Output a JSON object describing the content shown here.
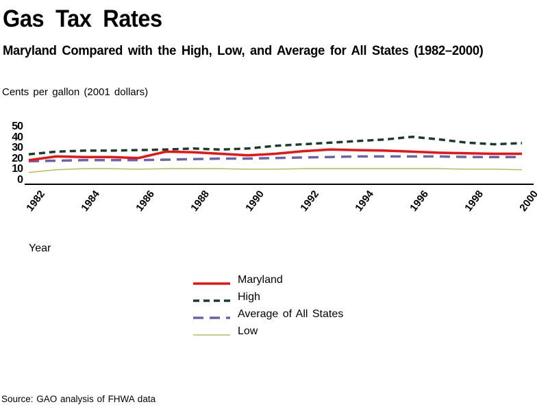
{
  "header": {
    "title": "Gas Tax Rates",
    "subtitle": "Maryland Compared with the High, Low, and Average for All States (1982–2000)",
    "units_label": "Cents per gallon (2001 dollars)"
  },
  "axis": {
    "x_label": "Year",
    "y_tick_labels": [
      "0",
      "10",
      "20",
      "30",
      "40",
      "50"
    ],
    "axis_color": "#000000"
  },
  "chart_data": {
    "type": "line",
    "title": "Gas Tax Rates",
    "subtitle": "Maryland Compared with the High, Low, and Average for All States (1982–2000)",
    "xlabel": "Year",
    "ylabel": "Cents per gallon (2001 dollars)",
    "ylim": [
      0,
      50
    ],
    "y_ticks": [
      0,
      10,
      20,
      30,
      40,
      50
    ],
    "x_tick_years": [
      1982,
      1984,
      1986,
      1988,
      1990,
      1992,
      1994,
      1996,
      1998,
      2000
    ],
    "grid": false,
    "legend_position": "bottom-center",
    "x": [
      1982,
      1983,
      1984,
      1985,
      1986,
      1987,
      1988,
      1989,
      1990,
      1991,
      1992,
      1993,
      1994,
      1995,
      1996,
      1997,
      1998,
      1999,
      2000
    ],
    "series": [
      {
        "name": "Maryland",
        "color": "#ee1111",
        "dash": "",
        "width": 3.5,
        "values": [
          18.5,
          22,
          21.5,
          21.5,
          20.5,
          26.5,
          26,
          24.5,
          23,
          24.5,
          27,
          28.5,
          28,
          27.5,
          26.5,
          25.5,
          25,
          24.5,
          24.5
        ]
      },
      {
        "name": "High",
        "color": "#1b3b28",
        "dash": "9,6",
        "width": 3.5,
        "values": [
          24,
          26.5,
          27.5,
          27.5,
          28,
          28.5,
          29.5,
          28.5,
          29.5,
          32,
          33.5,
          35,
          36.5,
          38,
          40.5,
          38,
          35,
          33.5,
          34.5
        ]
      },
      {
        "name": "Average of All States",
        "color": "#6a63ab",
        "dash": "15,9",
        "width": 3.5,
        "values": [
          17.5,
          18,
          18.5,
          18.5,
          18.5,
          19,
          19.5,
          20,
          20,
          20.5,
          21,
          21.5,
          22,
          22,
          22,
          22,
          21.5,
          21.5,
          21.5
        ]
      },
      {
        "name": "Low",
        "color": "#b3be55",
        "dash": "",
        "width": 1.5,
        "values": [
          7,
          9.5,
          10.5,
          10.5,
          10,
          10.5,
          10.5,
          10.5,
          10,
          10,
          10.5,
          10.5,
          10.5,
          10.5,
          10.5,
          10.5,
          10,
          10,
          9.5
        ]
      }
    ]
  },
  "footer": {
    "source": "Source: GAO analysis of FHWA data"
  }
}
